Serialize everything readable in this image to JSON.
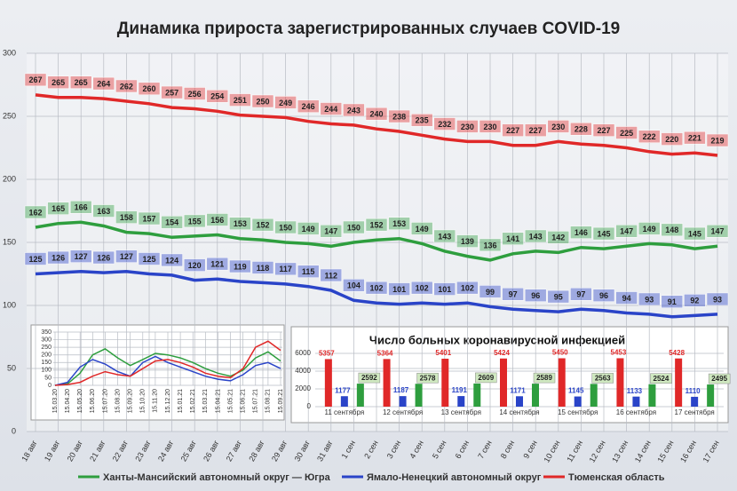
{
  "chart_data": [
    {
      "type": "line",
      "title": "Динамика прироста зарегистрированных случаев COVID-19",
      "categories": [
        "18 авг",
        "19 авг",
        "20 авг",
        "21 авг",
        "22 авг",
        "23 авг",
        "24 авг",
        "25 авг",
        "26 авг",
        "27 авг",
        "28 авг",
        "29 авг",
        "30 авг",
        "31 авг",
        "1 сен",
        "2 сен",
        "3 сен",
        "4 сен",
        "5 сен",
        "6 сен",
        "7 сен",
        "8 сен",
        "9 сен",
        "10 сен",
        "11 сен",
        "12 сен",
        "13 сен",
        "14 сен",
        "15 сен",
        "16 сен",
        "17 сен"
      ],
      "series": [
        {
          "name": "Ханты-Мансийский автономный округ — Югра",
          "color": "#2e9e3e",
          "values": [
            162,
            165,
            166,
            163,
            158,
            157,
            154,
            155,
            156,
            153,
            152,
            150,
            149,
            147,
            150,
            152,
            153,
            149,
            143,
            139,
            136,
            141,
            143,
            142,
            146,
            145,
            147,
            149,
            148,
            145,
            147
          ]
        },
        {
          "name": "Ямало-Ненецкий автономный округ",
          "color": "#2a44c8",
          "values": [
            125,
            126,
            127,
            126,
            127,
            125,
            124,
            120,
            121,
            119,
            118,
            117,
            115,
            112,
            104,
            102,
            101,
            102,
            101,
            102,
            99,
            97,
            96,
            95,
            97,
            96,
            94,
            93,
            91,
            92,
            93
          ]
        },
        {
          "name": "Тюменская область",
          "color": "#e02828",
          "values": [
            267,
            265,
            265,
            264,
            262,
            260,
            257,
            256,
            254,
            251,
            250,
            249,
            246,
            244,
            243,
            240,
            238,
            235,
            232,
            230,
            230,
            227,
            227,
            230,
            228,
            227,
            225,
            222,
            220,
            221,
            219
          ]
        }
      ],
      "ylim": [
        0,
        300
      ],
      "yticks": [
        0,
        50,
        100,
        150,
        200,
        250,
        300
      ],
      "grid": true,
      "legend": "bottom"
    },
    {
      "type": "line",
      "categories": [
        "15.03.20",
        "15.04.20",
        "15.05.20",
        "15.06.20",
        "15.07.20",
        "15.08.20",
        "15.09.20",
        "15.10.20",
        "15.11.20",
        "15.12.20",
        "15.01.21",
        "15.02.21",
        "15.03.21",
        "15.04.21",
        "15.05.21",
        "15.06.21",
        "15.07.21",
        "15.08.21",
        "15.09.21"
      ],
      "series": [
        {
          "color": "#2e9e3e",
          "values": [
            0,
            10,
            80,
            200,
            240,
            180,
            130,
            170,
            210,
            200,
            180,
            150,
            110,
            80,
            60,
            100,
            180,
            220,
            160
          ]
        },
        {
          "color": "#2a44c8",
          "values": [
            0,
            20,
            120,
            170,
            140,
            90,
            60,
            150,
            190,
            150,
            120,
            90,
            60,
            40,
            30,
            70,
            130,
            150,
            110
          ]
        },
        {
          "color": "#e02828",
          "values": [
            0,
            5,
            20,
            60,
            90,
            70,
            60,
            110,
            160,
            170,
            150,
            120,
            80,
            60,
            50,
            110,
            250,
            290,
            230
          ]
        }
      ],
      "ylim": [
        0,
        350
      ],
      "yticks": [
        0,
        50,
        100,
        150,
        200,
        250,
        300,
        350
      ],
      "grid": true
    },
    {
      "type": "bar",
      "title": "Число больных коронавирусной инфекцией",
      "categories": [
        "11 сентября",
        "12 сентября",
        "13 сентября",
        "14 сентября",
        "15 сентября",
        "16 сентября",
        "17 сентября"
      ],
      "series": [
        {
          "color": "#e02828",
          "values": [
            5357,
            5364,
            5401,
            5424,
            5450,
            5453,
            5428
          ]
        },
        {
          "color": "#2a44c8",
          "values": [
            1177,
            1187,
            1191,
            1171,
            1145,
            1133,
            1110
          ]
        },
        {
          "color": "#2e9e3e",
          "values": [
            2592,
            2578,
            2609,
            2589,
            2563,
            2524,
            2495
          ]
        }
      ],
      "ylim": [
        0,
        6000
      ],
      "yticks": [
        0,
        2000,
        4000,
        6000
      ],
      "grid": true
    }
  ]
}
